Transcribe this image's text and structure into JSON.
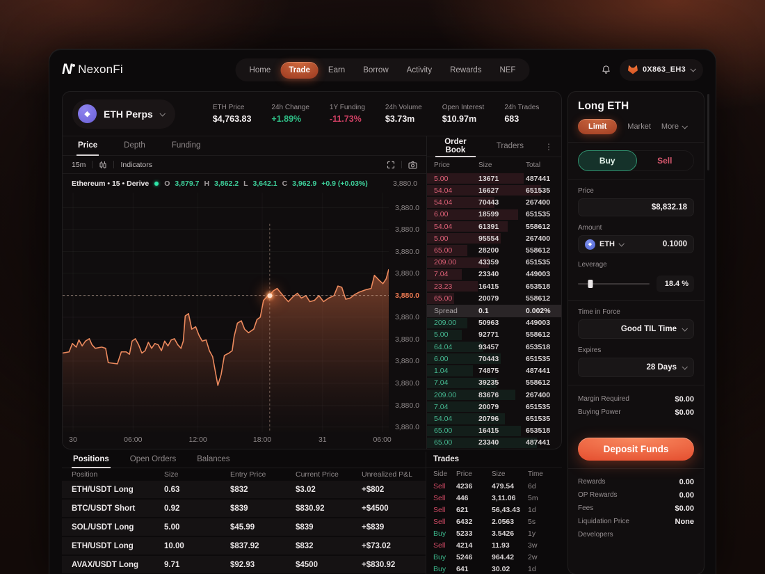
{
  "colors": {
    "accent": "#e86a3f",
    "green": "#2ebd85",
    "red": "#e0506e",
    "chart_line": "#ec8a5e"
  },
  "brand": {
    "mark": "N",
    "name": "NexonFi"
  },
  "nav": {
    "items": [
      {
        "label": "Home",
        "state": "idle"
      },
      {
        "label": "Trade",
        "state": "active"
      },
      {
        "label": "Earn",
        "state": "idle"
      },
      {
        "label": "Borrow",
        "state": "idle"
      },
      {
        "label": "Activity",
        "state": "idle"
      },
      {
        "label": "Rewards",
        "state": "idle"
      },
      {
        "label": "NEF",
        "state": "idle"
      }
    ]
  },
  "wallet": {
    "address": "0X863_EH3"
  },
  "market": {
    "selector_label": "ETH Perps",
    "stats": [
      {
        "label": "ETH Price",
        "value": "$4,763.83",
        "tone": "white"
      },
      {
        "label": "24h Change",
        "value": "+1.89%",
        "tone": "green"
      },
      {
        "label": "1Y Funding",
        "value": "-11.73%",
        "tone": "red"
      },
      {
        "label": "24h Volume",
        "value": "$3.73m",
        "tone": "white"
      },
      {
        "label": "Open Interest",
        "value": "$10.97m",
        "tone": "white"
      },
      {
        "label": "24h Trades",
        "value": "683",
        "tone": "white"
      }
    ]
  },
  "chart": {
    "tabs": [
      {
        "label": "Price",
        "state": "active"
      },
      {
        "label": "Depth",
        "state": "idle"
      },
      {
        "label": "Funding",
        "state": "idle"
      }
    ],
    "interval": "15m",
    "indicators_label": "Indicators",
    "legend": {
      "pair": "Ethereum • 15 • Derive",
      "o_label": "O",
      "o": "3,879.7",
      "h_label": "H",
      "h": "3,862.2",
      "l_label": "L",
      "l": "3,642.1",
      "c_label": "C",
      "c": "3,962.9",
      "change": "+0.9 (+0.03%)",
      "price_right": "3,880.0"
    },
    "price_axis": {
      "label": "3,880.0",
      "active_index": 4
    },
    "chart_data": {
      "type": "area",
      "x_ticks": [
        {
          "label": "30",
          "x": 3.2
        },
        {
          "label": "06:00",
          "x": 21.6
        },
        {
          "label": "12:00",
          "x": 41.5
        },
        {
          "label": "18:00",
          "x": 61.2
        },
        {
          "label": "31",
          "x": 79.7
        },
        {
          "label": "06:00",
          "x": 98
        }
      ],
      "y_gridlines_pct": [
        6.3,
        15.3,
        24.6,
        33.6,
        42.9,
        52,
        61.3,
        70.3,
        79.6,
        88.9,
        97.9
      ],
      "y_tick_label": "3,880.0",
      "crosshair": {
        "x": 63.5,
        "y": 42.9
      },
      "points": [
        [
          0,
          67
        ],
        [
          2,
          66.5
        ],
        [
          3,
          63
        ],
        [
          4.2,
          64.5
        ],
        [
          5,
          61.5
        ],
        [
          6,
          64
        ],
        [
          7,
          62
        ],
        [
          8.2,
          61
        ],
        [
          9,
          63.5
        ],
        [
          10,
          65
        ],
        [
          12,
          64.5
        ],
        [
          13.2,
          65
        ],
        [
          14,
          71
        ],
        [
          16.8,
          71.5
        ],
        [
          18,
          66.5
        ],
        [
          19.5,
          66.5
        ],
        [
          20.5,
          67.5
        ],
        [
          21.3,
          62
        ],
        [
          22.3,
          61
        ],
        [
          23.3,
          63.5
        ],
        [
          24.3,
          67
        ],
        [
          25.3,
          66
        ],
        [
          26.3,
          62.5
        ],
        [
          27.3,
          65
        ],
        [
          28.3,
          63
        ],
        [
          29.3,
          63.5
        ],
        [
          30.3,
          66
        ],
        [
          31.3,
          62
        ],
        [
          32.3,
          64
        ],
        [
          33.3,
          61.5
        ],
        [
          34.3,
          61
        ],
        [
          35.3,
          63.5
        ],
        [
          36.3,
          65
        ],
        [
          37,
          62
        ],
        [
          37.6,
          51.5
        ],
        [
          38.6,
          50.5
        ],
        [
          39.6,
          57
        ],
        [
          40.8,
          56
        ],
        [
          41.8,
          59.5
        ],
        [
          42.8,
          62
        ],
        [
          44,
          61.5
        ],
        [
          45,
          66
        ],
        [
          46,
          68.5
        ],
        [
          46.6,
          73
        ],
        [
          47.6,
          80.5
        ],
        [
          48.6,
          76
        ],
        [
          49.6,
          68
        ],
        [
          51,
          67
        ],
        [
          52,
          66
        ],
        [
          52.6,
          60
        ],
        [
          53.6,
          54.5
        ],
        [
          54.8,
          53.5
        ],
        [
          55.8,
          57
        ],
        [
          57,
          58.5
        ],
        [
          58.6,
          57
        ],
        [
          59.6,
          53
        ],
        [
          60.6,
          52
        ],
        [
          61.6,
          45
        ],
        [
          62.6,
          43.5
        ],
        [
          63.5,
          42.9
        ],
        [
          64.6,
          41
        ],
        [
          65.8,
          40
        ],
        [
          67,
          42
        ],
        [
          68.2,
          44
        ],
        [
          69.2,
          45.5
        ],
        [
          70.6,
          43.5
        ],
        [
          72,
          42
        ],
        [
          73.2,
          44
        ],
        [
          74.6,
          43
        ],
        [
          75.8,
          45.5
        ],
        [
          77.2,
          45
        ],
        [
          78.6,
          43
        ],
        [
          80,
          45.5
        ],
        [
          81.6,
          44
        ],
        [
          83.2,
          43
        ],
        [
          84.4,
          39
        ],
        [
          85.6,
          39.5
        ],
        [
          86.8,
          44.5
        ],
        [
          88.2,
          44
        ],
        [
          89.6,
          42.5
        ],
        [
          91,
          41.5
        ],
        [
          93,
          40.5
        ],
        [
          94.6,
          40
        ],
        [
          95.6,
          34.5
        ],
        [
          97,
          36.5
        ],
        [
          98.2,
          38
        ],
        [
          99.2,
          36
        ],
        [
          100,
          32
        ]
      ]
    }
  },
  "order_book": {
    "tabs": [
      {
        "label": "Order Book",
        "state": "active"
      },
      {
        "label": "Traders",
        "state": "idle"
      }
    ],
    "columns": [
      "Price",
      "Size",
      "Total"
    ],
    "asks": [
      {
        "price": "5.00",
        "size": "13671",
        "total": "487441",
        "depth": "72%"
      },
      {
        "price": "54.04",
        "size": "16627",
        "total": "651535",
        "depth": "85%"
      },
      {
        "price": "54.04",
        "size": "70443",
        "total": "267400",
        "depth": "50%"
      },
      {
        "price": "6.00",
        "size": "18599",
        "total": "651535",
        "depth": "68%"
      },
      {
        "price": "54.04",
        "size": "61391",
        "total": "558612",
        "depth": "60%"
      },
      {
        "price": "5.00",
        "size": "95554",
        "total": "267400",
        "depth": "55%"
      },
      {
        "price": "65.00",
        "size": "28200",
        "total": "558612",
        "depth": "30%"
      },
      {
        "price": "209.00",
        "size": "43359",
        "total": "651535",
        "depth": "46%"
      },
      {
        "price": "7.04",
        "size": "23340",
        "total": "449003",
        "depth": "26%"
      },
      {
        "price": "23.23",
        "size": "16415",
        "total": "653518",
        "depth": "38%"
      },
      {
        "price": "65.00",
        "size": "20079",
        "total": "558612",
        "depth": "20%"
      }
    ],
    "spread": {
      "label": "Spread",
      "value": "0.1",
      "pct": "0.002%"
    },
    "bids": [
      {
        "price": "209.00",
        "size": "50963",
        "total": "449003",
        "depth": "30%"
      },
      {
        "price": "5.00",
        "size": "92771",
        "total": "558612",
        "depth": "26%"
      },
      {
        "price": "64.04",
        "size": "93457",
        "total": "653518",
        "depth": "42%"
      },
      {
        "price": "6.00",
        "size": "70443",
        "total": "651535",
        "depth": "55%"
      },
      {
        "price": "1.04",
        "size": "74875",
        "total": "487441",
        "depth": "34%"
      },
      {
        "price": "7.04",
        "size": "39235",
        "total": "558612",
        "depth": "52%"
      },
      {
        "price": "209.00",
        "size": "83676",
        "total": "267400",
        "depth": "66%"
      },
      {
        "price": "7.04",
        "size": "20079",
        "total": "651535",
        "depth": "46%"
      },
      {
        "price": "54.04",
        "size": "20796",
        "total": "651535",
        "depth": "58%"
      },
      {
        "price": "65.00",
        "size": "16415",
        "total": "653518",
        "depth": "70%"
      },
      {
        "price": "65.00",
        "size": "23340",
        "total": "487441",
        "depth": "82%"
      }
    ]
  },
  "trades": {
    "title": "Trades",
    "columns": [
      "Side",
      "Price",
      "Size",
      "Time"
    ],
    "rows": [
      {
        "side": "Sell",
        "price": "4236",
        "size": "479.54",
        "time": "6d"
      },
      {
        "side": "Sell",
        "price": "446",
        "size": "3,11.06",
        "time": "5m"
      },
      {
        "side": "Sell",
        "price": "621",
        "size": "56,43.43",
        "time": "1d"
      },
      {
        "side": "Sell",
        "price": "6432",
        "size": "2.0563",
        "time": "5s"
      },
      {
        "side": "Buy",
        "price": "5233",
        "size": "3.5426",
        "time": "1y"
      },
      {
        "side": "Sell",
        "price": "4214",
        "size": "11.93",
        "time": "3w"
      },
      {
        "side": "Buy",
        "price": "5246",
        "size": "964.42",
        "time": "2w"
      },
      {
        "side": "Buy",
        "price": "641",
        "size": "30.02",
        "time": "1d"
      }
    ]
  },
  "positions": {
    "tabs": [
      {
        "label": "Positions",
        "state": "active"
      },
      {
        "label": "Open Orders",
        "state": "idle"
      },
      {
        "label": "Balances",
        "state": "idle"
      }
    ],
    "columns": [
      "Position",
      "Size",
      "Entry Price",
      "Current Price",
      "Unrealized P&L"
    ],
    "rows": [
      {
        "position": "ETH/USDT Long",
        "size": "0.63",
        "entry": "$832",
        "current": "$3.02",
        "pnl": "+$802"
      },
      {
        "position": "BTC/USDT Short",
        "size": "0.92",
        "entry": "$839",
        "current": "$830.92",
        "pnl": "+$4500"
      },
      {
        "position": "SOL/USDT Long",
        "size": "5.00",
        "entry": "$45.99",
        "current": "$839",
        "pnl": "+$839"
      },
      {
        "position": "ETH/USDT Long",
        "size": "10.00",
        "entry": "$837.92",
        "current": "$832",
        "pnl": "+$73.02"
      },
      {
        "position": "AVAX/USDT Long",
        "size": "9.71",
        "entry": "$92.93",
        "current": "$4500",
        "pnl": "+$830.92"
      }
    ]
  },
  "ticket": {
    "title": "Long ETH",
    "tabs": [
      {
        "label": "Limit",
        "state": "active"
      },
      {
        "label": "Market",
        "state": "idle"
      },
      {
        "label": "More",
        "state": "idle"
      }
    ],
    "buy_label": "Buy",
    "sell_label": "Sell",
    "price_label": "Price",
    "price_value": "$8,832.18",
    "amount_label": "Amount",
    "asset": "ETH",
    "amount_value": "0.1000",
    "leverage_label": "Leverage",
    "leverage_value": "18.4 %",
    "leverage_pct": 17,
    "tif_label": "Time in Force",
    "tif_value": "Good TIL Time",
    "expires_label": "Expires",
    "expires_value": "28 Days",
    "summary": [
      {
        "label": "Margin Required",
        "value": "$0.00"
      },
      {
        "label": "Buying Power",
        "value": "$0.00"
      }
    ],
    "deposit_label": "Deposit Funds",
    "footer": [
      {
        "label": "Rewards",
        "value": "0.00"
      },
      {
        "label": "OP Rewards",
        "value": "0.00"
      },
      {
        "label": "Fees",
        "value": "$0.00"
      },
      {
        "label": "Liquidation Price",
        "value": "None"
      },
      {
        "label": "Developers",
        "value": ""
      }
    ]
  }
}
